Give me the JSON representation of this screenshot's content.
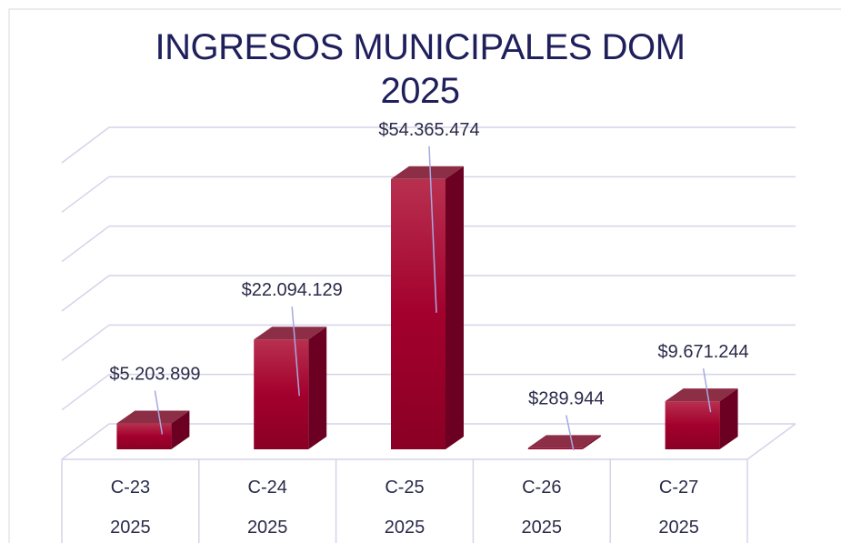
{
  "chart_data": {
    "type": "bar",
    "title": "INGRESOS MUNICIPALES DOM 2025",
    "categories": [
      [
        "C-23",
        "2025"
      ],
      [
        "C-24",
        "2025"
      ],
      [
        "C-25",
        "2025"
      ],
      [
        "C-26",
        "2025"
      ],
      [
        "C-27",
        "2025"
      ]
    ],
    "values": [
      5203899,
      22094129,
      54365474,
      289944,
      9671244
    ],
    "value_labels": [
      "$5.203.899",
      "$22.094.129",
      "$54.365.474",
      "$289.944",
      "$9.671.244"
    ],
    "color": "#a3002d",
    "ylim": [
      0,
      60000000
    ],
    "yticks": [
      0,
      10000000,
      20000000,
      30000000,
      40000000,
      50000000,
      60000000
    ],
    "grid": true
  }
}
